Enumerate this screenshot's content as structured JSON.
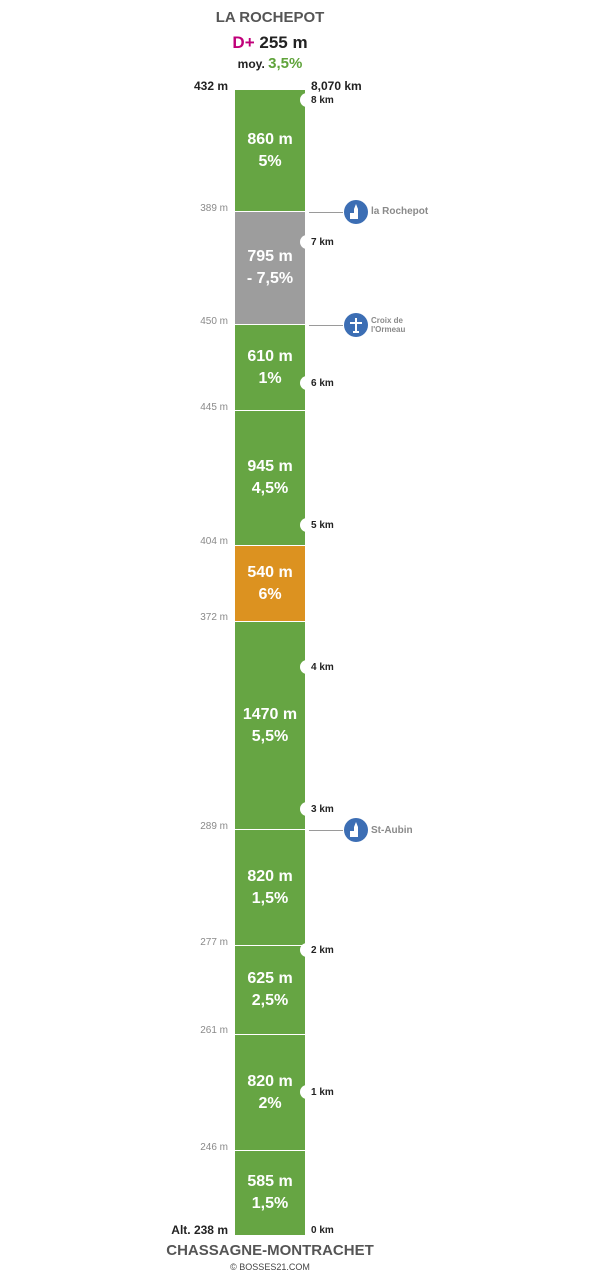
{
  "header": {
    "title": "LA ROCHEPOT",
    "dplus_label": "D+",
    "dplus_value": "255 m",
    "moy_label": "moy.",
    "moy_value": "3,5%"
  },
  "top": {
    "altitude": "432 m",
    "distance": "8,070 km"
  },
  "bottom": {
    "altitude": "Alt. 238 m",
    "name": "CHASSAGNE-MONTRACHET",
    "credit": "© BOSSES21.COM"
  },
  "colors": {
    "green": "#66a543",
    "grey": "#9d9d9d",
    "orange": "#dc9220",
    "poi_blue": "#3c6eb4",
    "dplus_magenta": "#c0007a",
    "moy_green": "#5fa33a"
  },
  "segments": [
    {
      "length": "860 m",
      "grade": "5%",
      "color": "green"
    },
    {
      "length": "795 m",
      "grade": "- 7,5%",
      "color": "grey"
    },
    {
      "length": "610 m",
      "grade": "1%",
      "color": "green"
    },
    {
      "length": "945 m",
      "grade": "4,5%",
      "color": "green"
    },
    {
      "length": "540 m",
      "grade": "6%",
      "color": "orange"
    },
    {
      "length": "1470 m",
      "grade": "5,5%",
      "color": "green"
    },
    {
      "length": "820 m",
      "grade": "1,5%",
      "color": "green"
    },
    {
      "length": "625 m",
      "grade": "2,5%",
      "color": "green"
    },
    {
      "length": "820 m",
      "grade": "2%",
      "color": "green"
    },
    {
      "length": "585 m",
      "grade": "1,5%",
      "color": "green"
    }
  ],
  "boundary_altitudes": [
    "389 m",
    "450 m",
    "445 m",
    "404 m",
    "372 m",
    "289 m",
    "277 m",
    "261 m",
    "246 m"
  ],
  "km_markers": [
    "8 km",
    "7 km",
    "6 km",
    "5 km",
    "4 km",
    "3 km",
    "2 km",
    "1 km",
    "0 km"
  ],
  "pois": [
    {
      "name": "la Rochepot",
      "icon": "church-icon"
    },
    {
      "name_line1": "Croix de",
      "name_line2": "l'Ormeau",
      "icon": "cross-icon"
    },
    {
      "name": "St-Aubin",
      "icon": "church-icon"
    }
  ]
}
